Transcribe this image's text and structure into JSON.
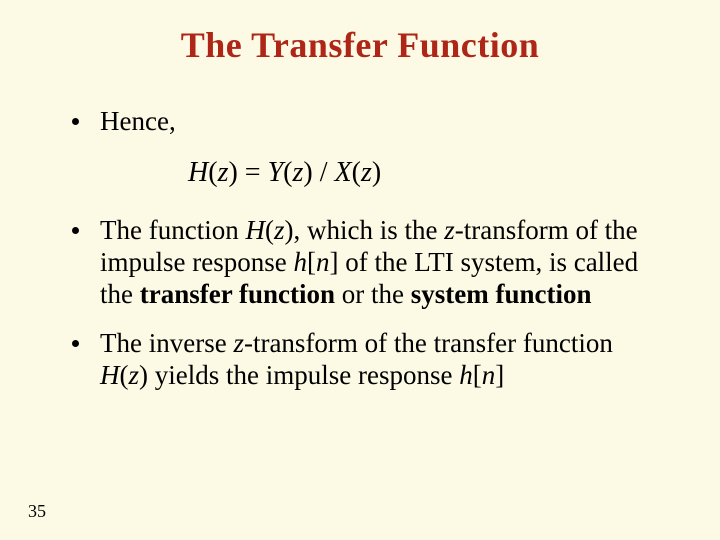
{
  "background_color": "#fcfae5",
  "title_color": "#AE2617",
  "text_color": "#000000",
  "title": "The Transfer Function",
  "bullets": {
    "b1": "Hence,",
    "b2_pre": "The function ",
    "b2_Hz": "H",
    "b2_z": "z",
    "b2_mid1": "), which is the ",
    "b2_mid2": "-transform of the impulse response ",
    "b2_hn_h": "h",
    "b2_hn_n": "n",
    "b2_mid3": "] of the LTI system, is called the ",
    "b2_tf": "transfer function",
    "b2_or": " or the ",
    "b2_sf": "system function",
    "b3_pre": "The inverse ",
    "b3_z": "z",
    "b3_mid1": "-transform of the transfer function ",
    "b3_Hz": "H",
    "b3_mid2": ") yields the impulse response ",
    "b3_hn_h": "h",
    "b3_hn_n": "n",
    "b3_end": "]"
  },
  "equation": {
    "H": "H",
    "z": "z",
    "Y": "Y",
    "X": "X",
    "open": "(",
    "close": ")",
    "eq": " = ",
    "slash": " / "
  },
  "page_number": "35"
}
